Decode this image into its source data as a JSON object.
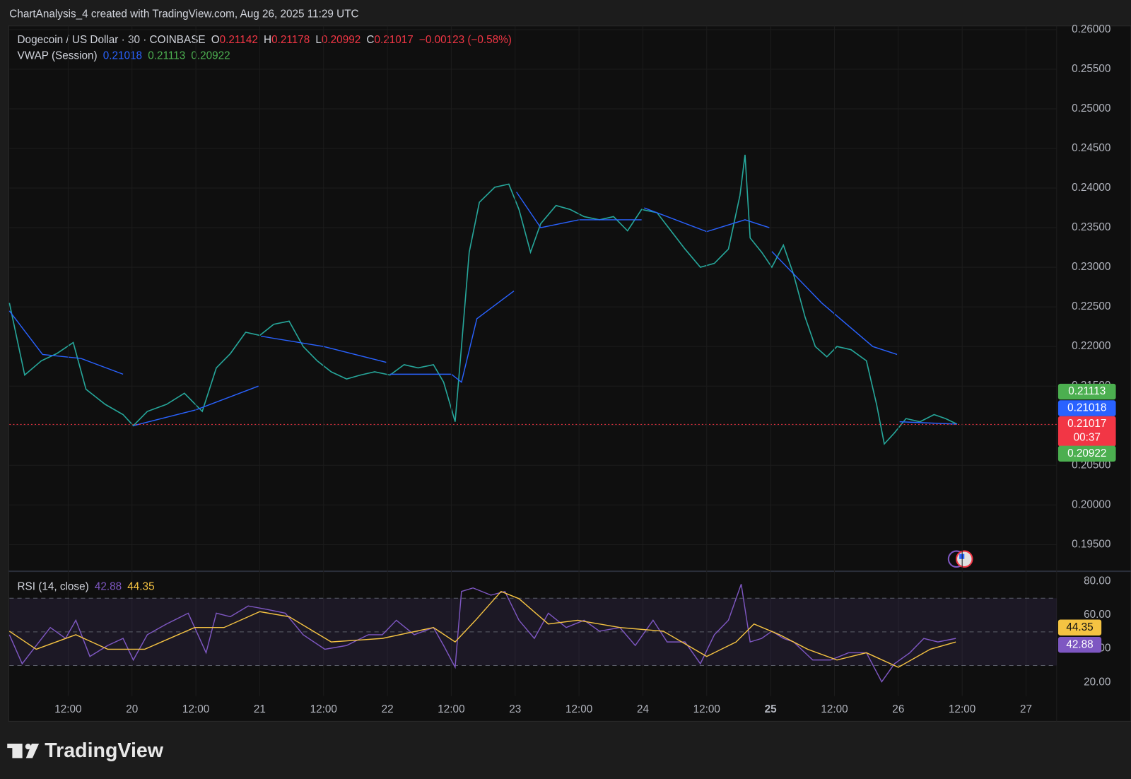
{
  "header": "ChartAnalysis_4 created with TradingView.com, Aug 26, 2025 11:29 UTC",
  "footer": "TradingView",
  "chart_data": [
    {
      "type": "line",
      "title": "Dogecoin / US Dollar · 30 · COINBASE",
      "ohlc": [
        {
          "label": "O",
          "value": 0.21142
        },
        {
          "label": "H",
          "value": 0.21178
        },
        {
          "label": "L",
          "value": 0.20992
        },
        {
          "label": "C",
          "value": 0.21017
        }
      ],
      "change": "−0.00123 (−0.58%)",
      "countdown": "00:37",
      "xlim": [
        19.04,
        27.24
      ],
      "ylim": [
        0.19181,
        0.26046
      ],
      "yticks": [
        {
          "value": 0.195,
          "label": "0.19500"
        },
        {
          "value": 0.2,
          "label": "0.20000"
        },
        {
          "value": 0.205,
          "label": "0.20500"
        },
        {
          "value": 0.21,
          "label": "0.21000"
        },
        {
          "value": 0.215,
          "label": "0.21500"
        },
        {
          "value": 0.22,
          "label": "0.22000"
        },
        {
          "value": 0.225,
          "label": "0.22500"
        },
        {
          "value": 0.23,
          "label": "0.23000"
        },
        {
          "value": 0.235,
          "label": "0.23500"
        },
        {
          "value": 0.24,
          "label": "0.24000"
        },
        {
          "value": 0.245,
          "label": "0.24500"
        },
        {
          "value": 0.25,
          "label": "0.25000"
        },
        {
          "value": 0.255,
          "label": "0.25500"
        },
        {
          "value": 0.26,
          "label": "0.26000"
        }
      ],
      "grid": true,
      "series": [
        {
          "color": "#26a69a",
          "x": [
            19.04,
            19.16,
            19.29,
            19.41,
            19.54,
            19.64,
            19.79,
            19.93,
            20.01,
            20.12,
            20.27,
            20.41,
            20.55,
            20.66,
            20.77,
            20.89,
            21.0,
            21.11,
            21.23,
            21.34,
            21.45,
            21.56,
            21.68,
            21.79,
            21.9,
            22.02,
            22.13,
            22.24,
            22.36,
            22.44,
            22.53,
            22.58,
            22.64,
            22.72,
            22.84,
            22.95,
            23.03,
            23.12,
            23.2,
            23.32,
            23.43,
            23.54,
            23.66,
            23.77,
            23.88,
            23.99,
            24.11,
            24.22,
            24.33,
            24.45,
            24.56,
            24.67,
            24.76,
            24.8,
            24.84,
            24.93,
            25.01,
            25.1,
            25.18,
            25.27,
            25.35,
            25.44,
            25.52,
            25.63,
            25.75,
            25.83,
            25.89,
            25.97,
            26.06,
            26.17,
            26.28,
            26.37,
            26.46
          ],
          "values": [
            0.2255,
            0.2164,
            0.2182,
            0.2191,
            0.2205,
            0.2146,
            0.2127,
            0.2114,
            0.21,
            0.2118,
            0.2127,
            0.2141,
            0.2118,
            0.2173,
            0.2191,
            0.2218,
            0.2214,
            0.2228,
            0.2232,
            0.22,
            0.2182,
            0.2168,
            0.2159,
            0.2164,
            0.2168,
            0.2164,
            0.2177,
            0.2173,
            0.2177,
            0.2155,
            0.2105,
            0.22,
            0.2319,
            0.2382,
            0.2401,
            0.2405,
            0.2373,
            0.2319,
            0.2355,
            0.2378,
            0.2373,
            0.2364,
            0.236,
            0.2364,
            0.2346,
            0.2373,
            0.2369,
            0.2346,
            0.2323,
            0.23,
            0.2305,
            0.2323,
            0.2391,
            0.2442,
            0.2337,
            0.2319,
            0.23,
            0.2328,
            0.2291,
            0.2237,
            0.22,
            0.2187,
            0.22,
            0.2196,
            0.2182,
            0.2127,
            0.2077,
            0.2091,
            0.2109,
            0.2105,
            0.2114,
            0.2109,
            0.2102
          ]
        },
        {
          "name": "VWAP (Session)",
          "color": "#2962ff",
          "legend_values": [
            0.21018,
            0.21113,
            0.20922
          ],
          "legend_colors": [
            "#2962ff",
            "#4caf50",
            "#4caf50"
          ],
          "x": [
            19.04,
            19.3,
            19.6,
            19.93,
            19.97,
            20.01,
            20.5,
            20.99,
            21.0,
            21.01,
            21.5,
            21.99,
            22.0,
            22.02,
            22.5,
            22.58,
            22.7,
            22.99,
            23.0,
            23.01,
            23.2,
            23.5,
            23.99,
            24.0,
            24.01,
            24.5,
            24.8,
            24.99,
            25.0,
            25.01,
            25.4,
            25.8,
            25.99,
            26.0,
            26.01,
            26.46
          ],
          "values": [
            0.2245,
            0.219,
            0.2185,
            0.2165,
            null,
            0.21,
            0.212,
            0.215,
            null,
            0.2213,
            0.22,
            0.218,
            null,
            0.2165,
            0.2165,
            0.2155,
            0.2235,
            0.227,
            null,
            0.2395,
            0.235,
            0.236,
            0.236,
            null,
            0.2375,
            0.2345,
            0.236,
            0.235,
            null,
            0.232,
            0.2255,
            0.22,
            0.219,
            null,
            0.2105,
            0.2102
          ]
        }
      ]
    },
    {
      "type": "line",
      "title": "RSI (14, close)",
      "xlim": [
        19.04,
        27.24
      ],
      "xticks": [
        {
          "value": 19.5,
          "label": "12:00"
        },
        20,
        {
          "value": 20.5,
          "label": "12:00"
        },
        21,
        {
          "value": 21.5,
          "label": "12:00"
        },
        22,
        {
          "value": 22.5,
          "label": "12:00"
        },
        23,
        {
          "value": 23.5,
          "label": "12:00"
        },
        24,
        {
          "value": 24.5,
          "label": "12:00"
        },
        25,
        {
          "value": 25.5,
          "label": "12:00"
        },
        26,
        {
          "value": 26.5,
          "label": "12:00"
        },
        27
      ],
      "ylim": [
        11.9,
        84.7
      ],
      "yticks": [
        {
          "value": 20,
          "label": "20.00"
        },
        {
          "value": 40,
          "label": "40.00"
        },
        {
          "value": 60,
          "label": "60.00"
        },
        {
          "value": 80,
          "label": "80.00"
        }
      ],
      "band": [
        30,
        70
      ],
      "levels": [
        30,
        50,
        70
      ],
      "series": [
        {
          "color": "#7e57c2",
          "last": 42.88,
          "x": [
            19.04,
            19.14,
            19.25,
            19.36,
            19.48,
            19.56,
            19.67,
            19.81,
            19.93,
            20.01,
            20.12,
            20.27,
            20.44,
            20.58,
            20.66,
            20.77,
            20.91,
            21.06,
            21.2,
            21.34,
            21.51,
            21.68,
            21.85,
            21.96,
            22.07,
            22.21,
            22.36,
            22.44,
            22.53,
            22.58,
            22.67,
            22.81,
            22.92,
            23.03,
            23.15,
            23.26,
            23.4,
            23.54,
            23.66,
            23.82,
            23.94,
            24.08,
            24.19,
            24.33,
            24.45,
            24.56,
            24.67,
            24.77,
            24.84,
            24.93,
            25.01,
            25.1,
            25.18,
            25.33,
            25.47,
            25.61,
            25.75,
            25.87,
            25.97,
            26.09,
            26.2,
            26.31,
            26.45
          ],
          "values": [
            48.3,
            31.1,
            41.9,
            52.6,
            46.1,
            56.9,
            35.4,
            41.9,
            46.1,
            33.3,
            48.3,
            54.7,
            61.1,
            37.6,
            61.1,
            59.0,
            65.4,
            63.3,
            61.1,
            48.3,
            39.7,
            41.9,
            48.3,
            48.3,
            56.9,
            48.3,
            52.6,
            41.9,
            29.0,
            74.0,
            76.1,
            71.8,
            74.0,
            56.9,
            46.1,
            61.1,
            52.6,
            56.9,
            50.4,
            52.6,
            41.9,
            56.9,
            44.0,
            44.0,
            31.1,
            48.3,
            56.9,
            78.3,
            44.0,
            46.1,
            50.4,
            46.1,
            44.0,
            33.3,
            33.3,
            37.6,
            37.6,
            20.4,
            31.1,
            37.6,
            46.1,
            44.0,
            46.1
          ]
        },
        {
          "color": "#f5c342",
          "last": 44.35,
          "x": [
            19.04,
            19.25,
            19.56,
            19.81,
            20.1,
            20.49,
            20.72,
            21.0,
            21.23,
            21.56,
            21.96,
            22.36,
            22.53,
            22.69,
            22.89,
            23.03,
            23.26,
            23.49,
            23.82,
            24.16,
            24.5,
            24.73,
            24.87,
            25.07,
            25.29,
            25.52,
            25.75,
            26.0,
            26.25,
            26.45
          ],
          "values": [
            50.4,
            39.7,
            48.3,
            39.7,
            39.7,
            52.6,
            52.6,
            62.0,
            59.0,
            44.0,
            46.1,
            52.6,
            44.0,
            56.9,
            74.0,
            69.7,
            54.7,
            56.9,
            52.6,
            50.4,
            35.4,
            44.0,
            54.7,
            48.3,
            39.7,
            33.3,
            37.6,
            29.0,
            39.7,
            44.0
          ]
        }
      ]
    }
  ]
}
